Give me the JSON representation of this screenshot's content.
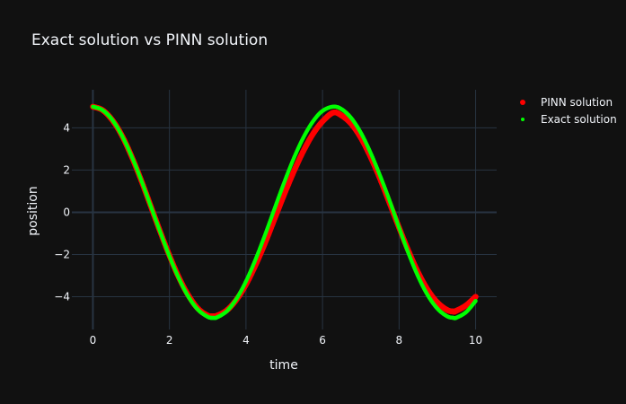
{
  "chart_data": {
    "type": "scatter",
    "title": "Exact solution vs PINN solution",
    "xlabel": "time",
    "ylabel": "position",
    "xlim": [
      -0.55,
      10.55
    ],
    "ylim": [
      -5.55,
      5.8
    ],
    "xticks": [
      0,
      2,
      4,
      6,
      8,
      10
    ],
    "yticks": [
      -4,
      -2,
      0,
      2,
      4
    ],
    "grid": true,
    "legend_position": "top-right",
    "background_color": "#111111",
    "series": [
      {
        "name": "PINN solution",
        "color": "#ff0000",
        "marker": "large-dot",
        "x": [
          0,
          0.25,
          0.5,
          0.75,
          1,
          1.25,
          1.5,
          1.75,
          2,
          2.25,
          2.5,
          2.75,
          3,
          3.14,
          3.25,
          3.5,
          3.75,
          4,
          4.25,
          4.5,
          4.75,
          5,
          5.25,
          5.5,
          5.75,
          6,
          6.28,
          6.5,
          6.75,
          7,
          7.25,
          7.5,
          7.75,
          8,
          8.25,
          8.5,
          8.75,
          9,
          9.25,
          9.42,
          9.5,
          9.75,
          10
        ],
        "y": [
          5,
          4.84,
          4.38,
          3.66,
          2.69,
          1.57,
          0.35,
          -0.88,
          -2.05,
          -3.1,
          -3.95,
          -4.57,
          -4.89,
          -4.92,
          -4.89,
          -4.64,
          -4.14,
          -3.42,
          -2.5,
          -1.45,
          -0.3,
          0.85,
          1.93,
          2.9,
          3.71,
          4.3,
          4.72,
          4.58,
          4.19,
          3.53,
          2.64,
          1.6,
          0.44,
          -0.73,
          -1.85,
          -2.86,
          -3.68,
          -4.27,
          -4.62,
          -4.7,
          -4.66,
          -4.41,
          -4
        ]
      },
      {
        "name": "Exact solution",
        "color": "#00ff00",
        "marker": "small-dot",
        "x": [
          0,
          0.25,
          0.5,
          0.75,
          1,
          1.25,
          1.5,
          1.75,
          2,
          2.25,
          2.5,
          2.75,
          3,
          3.14,
          3.25,
          3.5,
          3.75,
          4,
          4.25,
          4.5,
          4.75,
          5,
          5.25,
          5.5,
          5.75,
          6,
          6.28,
          6.5,
          6.75,
          7,
          7.25,
          7.5,
          7.75,
          8,
          8.25,
          8.5,
          8.75,
          9,
          9.25,
          9.42,
          9.5,
          9.75,
          10
        ],
        "y": [
          5,
          4.84,
          4.39,
          3.66,
          2.7,
          1.58,
          0.35,
          -0.89,
          -2.08,
          -3.14,
          -4.01,
          -4.62,
          -4.95,
          -5,
          -4.97,
          -4.68,
          -4.1,
          -3.27,
          -2.23,
          -1.06,
          0.19,
          1.42,
          2.56,
          3.54,
          4.3,
          4.8,
          5,
          4.88,
          4.46,
          3.77,
          2.84,
          1.75,
          0.56,
          -0.73,
          -1.96,
          -3.05,
          -3.93,
          -4.56,
          -4.92,
          -5,
          -4.99,
          -4.73,
          -4.2
        ]
      }
    ]
  }
}
